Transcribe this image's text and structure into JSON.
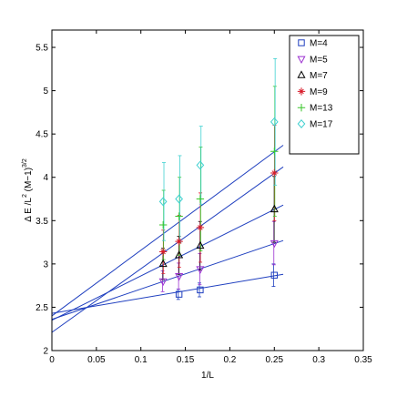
{
  "chart_data": {
    "type": "scatter",
    "title": "",
    "xlabel": "1/L",
    "ylabel": "Δ E /L² (M−1)³ᐟ²",
    "ylabel_parts": {
      "a": "Δ E /L",
      "b": "2",
      "c": " (M−1)",
      "d": "3/2"
    },
    "xlim": [
      0,
      0.35
    ],
    "ylim": [
      2,
      5.7
    ],
    "xticks": [
      0,
      0.05,
      0.1,
      0.15,
      0.2,
      0.25,
      0.3,
      0.35
    ],
    "xtick_labels": [
      "0",
      "0.05",
      "0.1",
      "0.15",
      "0.2",
      "0.25",
      "0.3",
      "0.35"
    ],
    "yticks": [
      2,
      2.5,
      3,
      3.5,
      4,
      4.5,
      5,
      5.5
    ],
    "ytick_labels": [
      "2",
      "2.5",
      "3",
      "3.5",
      "4",
      "4.5",
      "5",
      "5.5"
    ],
    "grid": false,
    "legend_position": "top-right",
    "fit_line_color": "#1f3fbf",
    "fit_lines": [
      {
        "x": [
          0,
          0.26
        ],
        "y": [
          2.43,
          2.88
        ]
      },
      {
        "x": [
          0,
          0.26
        ],
        "y": [
          2.36,
          3.27
        ]
      },
      {
        "x": [
          0,
          0.26
        ],
        "y": [
          2.35,
          3.68
        ]
      },
      {
        "x": [
          0,
          0.26
        ],
        "y": [
          2.21,
          4.12
        ]
      },
      {
        "x": [
          0,
          0.26
        ],
        "y": [
          2.4,
          4.37
        ]
      }
    ],
    "series": [
      {
        "name": "M=4",
        "marker": "square",
        "color": "#1f3fbf",
        "x": [
          0.1429,
          0.1667,
          0.25
        ],
        "y": [
          2.65,
          2.7,
          2.87
        ],
        "err": [
          0.06,
          0.08,
          0.13
        ]
      },
      {
        "name": "M=5",
        "marker": "triangle-down",
        "color": "#9b30d0",
        "x": [
          0.125,
          0.1429,
          0.1667,
          0.25
        ],
        "y": [
          2.8,
          2.86,
          2.94,
          3.24
        ],
        "err": [
          0.12,
          0.15,
          0.18,
          0.25
        ]
      },
      {
        "name": "M=7",
        "marker": "triangle-up",
        "color": "#000000",
        "x": [
          0.125,
          0.1429,
          0.1667,
          0.25
        ],
        "y": [
          3.0,
          3.1,
          3.21,
          3.63
        ],
        "err": [
          0.18,
          0.22,
          0.28,
          0.38
        ]
      },
      {
        "name": "M=9",
        "marker": "star",
        "color": "#d81b2a",
        "x": [
          0.125,
          0.1429,
          0.1667,
          0.25
        ],
        "y": [
          3.14,
          3.26,
          3.42,
          4.05
        ],
        "err": [
          0.25,
          0.3,
          0.4,
          0.55
        ]
      },
      {
        "name": "M=13",
        "marker": "plus",
        "color": "#39c62a",
        "x": [
          0.125,
          0.1429,
          0.1667,
          0.25
        ],
        "y": [
          3.45,
          3.55,
          3.75,
          4.3
        ],
        "err": [
          0.4,
          0.45,
          0.6,
          0.75
        ]
      },
      {
        "name": "M=17",
        "marker": "diamond",
        "color": "#3fd0d0",
        "x": [
          0.125,
          0.1429,
          0.1667,
          0.25
        ],
        "y": [
          3.72,
          3.75,
          4.14,
          4.64
        ],
        "err": [
          0.45,
          0.5,
          0.45,
          0.73
        ]
      }
    ]
  }
}
